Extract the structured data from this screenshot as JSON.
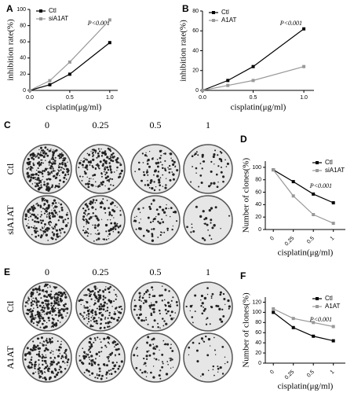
{
  "chart_data": [
    {
      "type": "line",
      "panel": "A",
      "x": [
        0,
        0.25,
        0.5,
        1.0
      ],
      "xlim": [
        0,
        1.1
      ],
      "xticks": [
        {
          "value": 0,
          "label": "0.0"
        },
        {
          "value": 0.5,
          "label": "0.5"
        },
        {
          "value": 1.0,
          "label": "1.0"
        }
      ],
      "ylim": [
        0,
        100
      ],
      "yticks": [
        0,
        20,
        40,
        60,
        80,
        100
      ],
      "xlabel": "cisplatin(μg/ml)",
      "ylabel": "inhibition rate(%)",
      "annotation": "P<0.001",
      "legend": "upper left",
      "series": [
        {
          "name": "Ctl",
          "color": "#000000",
          "values": [
            0,
            7,
            20,
            59
          ]
        },
        {
          "name": "siA1AT",
          "color": "#999999",
          "values": [
            0,
            12,
            35,
            87
          ]
        }
      ]
    },
    {
      "type": "line",
      "panel": "B",
      "x": [
        0,
        0.25,
        0.5,
        1.0
      ],
      "xlim": [
        0,
        1.1
      ],
      "xticks": [
        {
          "value": 0,
          "label": "0.0"
        },
        {
          "value": 0.5,
          "label": "0.5"
        },
        {
          "value": 1.0,
          "label": "1.0"
        }
      ],
      "ylim": [
        0,
        80
      ],
      "yticks": [
        0,
        20,
        40,
        60,
        80
      ],
      "xlabel": "cisplatin(μg/ml)",
      "ylabel": "inhibition rate(%)",
      "annotation": "P<0.001",
      "legend": "upper left",
      "series": [
        {
          "name": "Ctl",
          "color": "#000000",
          "values": [
            0,
            10,
            24,
            62
          ]
        },
        {
          "name": "A1AT",
          "color": "#999999",
          "values": [
            0,
            5,
            10,
            24
          ]
        }
      ]
    },
    {
      "type": "line",
      "panel": "D",
      "categories": [
        "0",
        "0.25",
        "0.5",
        "1"
      ],
      "ylim": [
        0,
        110
      ],
      "yticks": [
        0,
        20,
        40,
        60,
        80,
        100
      ],
      "xlabel": "cisplatin(μg/ml)",
      "ylabel": "Number of clones(%)",
      "annotation": "P<0.001",
      "legend": "upper right",
      "series": [
        {
          "name": "Ctl",
          "color": "#000000",
          "values": [
            96,
            77,
            57,
            43
          ]
        },
        {
          "name": "siA1AT",
          "color": "#999999",
          "values": [
            96,
            54,
            24,
            10
          ]
        }
      ]
    },
    {
      "type": "line",
      "panel": "F",
      "categories": [
        "0",
        "0.25",
        "0.5",
        "1"
      ],
      "ylim": [
        0,
        130
      ],
      "yticks": [
        0,
        20,
        40,
        60,
        80,
        100,
        120
      ],
      "xlabel": "cisplatin(μg/ml)",
      "ylabel": "Number of clones(%)",
      "annotation": "P<0.001",
      "legend": "upper right",
      "series": [
        {
          "name": "Ctl",
          "color": "#000000",
          "values": [
            100,
            70,
            53,
            44
          ]
        },
        {
          "name": "A1AT",
          "color": "#999999",
          "values": [
            107,
            88,
            80,
            72
          ]
        }
      ]
    }
  ],
  "plate_panels": [
    {
      "panel": "C",
      "columns": [
        "0",
        "0.25",
        "0.5",
        "1"
      ],
      "rows": [
        "Ctl",
        "siA1AT"
      ]
    },
    {
      "panel": "E",
      "columns": [
        "0",
        "0.25",
        "0.5",
        "1"
      ],
      "rows": [
        "Ctl",
        "A1AT"
      ]
    }
  ]
}
